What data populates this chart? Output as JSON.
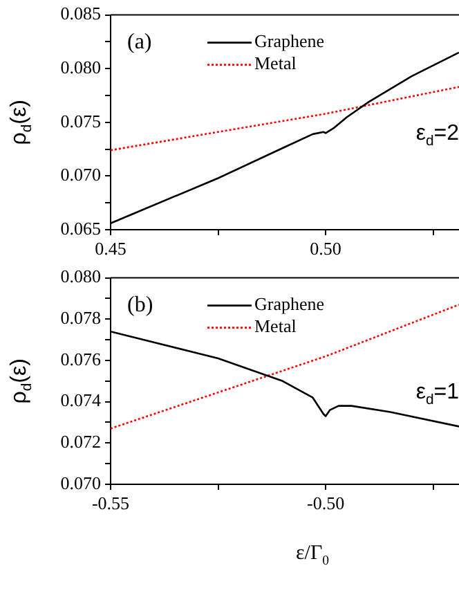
{
  "chart_data": [
    {
      "type": "line",
      "ylabel": "ρ$_{d}$(ε)",
      "annotations": [
        "(a)",
        "ε$_{d}$=2"
      ],
      "xlim": [
        0.45,
        0.531
      ],
      "xticks": [
        0.45,
        {
          "value": 0.475,
          "label": null
        },
        {
          "value": 0.5,
          "label": "0.50"
        },
        {
          "value": 0.525,
          "label": null
        }
      ],
      "ylim": [
        0.065,
        0.085
      ],
      "yticks": [
        0.065,
        {
          "value": 0.0675,
          "label": null
        },
        {
          "value": 0.07,
          "label": "0.070"
        },
        {
          "value": 0.0725,
          "label": null
        },
        0.075,
        {
          "value": 0.0775,
          "label": null
        },
        {
          "value": 0.08,
          "label": "0.080"
        },
        {
          "value": 0.0825,
          "label": null
        },
        0.085
      ],
      "legend": "top",
      "marker": "none",
      "series": [
        {
          "name": "Graphene",
          "color": "#000000",
          "line_style": "solid",
          "x": [
            0.45,
            0.475,
            0.49,
            0.497,
            0.4995,
            0.5,
            0.502,
            0.505,
            0.51,
            0.52,
            0.531
          ],
          "values": [
            0.0656,
            0.0698,
            0.0726,
            0.0739,
            0.0741,
            0.074,
            0.0745,
            0.0755,
            0.0769,
            0.0793,
            0.0815
          ]
        },
        {
          "name": "Metal",
          "color": "#ff0000",
          "line_style": "dotted",
          "x": [
            0.45,
            0.5,
            0.531
          ],
          "values": [
            0.0724,
            0.0758,
            0.0783
          ]
        }
      ]
    },
    {
      "type": "line",
      "xlabel": "ε/Γ$_{0}$",
      "ylabel": "ρ$_{d}$(ε)",
      "annotations": [
        "(b)",
        "ε$_{d}$=1"
      ],
      "xlim": [
        -0.55,
        -0.469
      ],
      "xticks": [
        -0.55,
        {
          "value": -0.525,
          "label": null
        },
        {
          "value": -0.5,
          "label": "-0.50"
        },
        {
          "value": -0.475,
          "label": null
        }
      ],
      "ylim": [
        0.07,
        0.08
      ],
      "yticks": [
        {
          "value": 0.07,
          "label": "0.070"
        },
        {
          "value": 0.071,
          "label": null
        },
        0.072,
        {
          "value": 0.073,
          "label": null
        },
        0.074,
        {
          "value": 0.075,
          "label": null
        },
        0.076,
        {
          "value": 0.077,
          "label": null
        },
        0.078,
        {
          "value": 0.079,
          "label": null
        },
        {
          "value": 0.08,
          "label": "0.080"
        }
      ],
      "legend": "top",
      "marker": "none",
      "series": [
        {
          "name": "Graphene",
          "color": "#000000",
          "line_style": "solid",
          "x": [
            -0.55,
            -0.525,
            -0.51,
            -0.503,
            -0.5005,
            -0.5,
            -0.499,
            -0.497,
            -0.494,
            -0.485,
            -0.469
          ],
          "values": [
            0.0774,
            0.0761,
            0.075,
            0.0742,
            0.0734,
            0.0733,
            0.0736,
            0.0738,
            0.0738,
            0.0735,
            0.0728
          ]
        },
        {
          "name": "Metal",
          "color": "#ff0000",
          "line_style": "dotted",
          "x": [
            -0.55,
            -0.5,
            -0.469
          ],
          "values": [
            0.0727,
            0.0762,
            0.0787
          ]
        }
      ]
    }
  ]
}
